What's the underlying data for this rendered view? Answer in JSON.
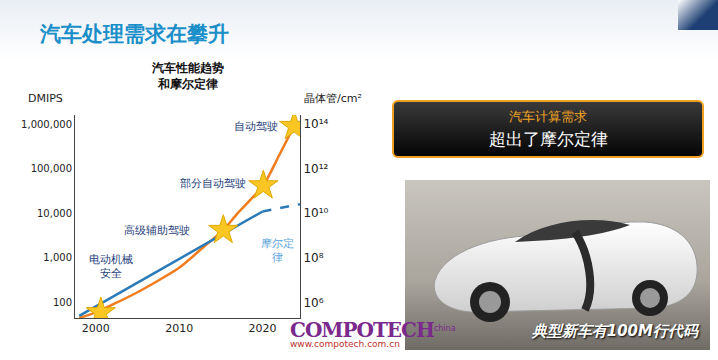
{
  "title": "汽车处理需求在攀升",
  "chart_data": {
    "type": "line",
    "title": "汽车性能趋势\n和摩尔定律",
    "ylabel": "DMIPS",
    "y2label": "晶体管/cm²",
    "log": "y",
    "grid": false,
    "xlim": [
      1997.5,
      2024.5
    ],
    "xticks": [
      2000,
      2010,
      2020
    ],
    "ylim": [
      45,
      1600000
    ],
    "yticks": [
      100,
      {
        "value": 1000,
        "label": "1,000"
      },
      {
        "value": 10000,
        "label": "10,000"
      },
      {
        "value": 100000,
        "label": "100,000"
      },
      {
        "value": 1000000,
        "label": "1,000,000"
      }
    ],
    "y2lim": [
      200000,
      250000000000000
    ],
    "y2ticks": [
      {
        "value": 1000000,
        "label": "10⁶"
      },
      {
        "value": 100000000,
        "label": "10⁸"
      },
      {
        "value": 10000000000,
        "label": "10¹⁰"
      },
      {
        "value": 1000000000000,
        "label": "10¹²"
      },
      {
        "value": 100000000000000,
        "label": "10¹⁴"
      }
    ],
    "series": [
      {
        "type": "line",
        "color": "#f07c1e",
        "line_style": "solid",
        "x": [
          1998,
          2000,
          2005,
          2010,
          2013,
          2015.3,
          2017,
          2020.1,
          2022,
          2023.8
        ],
        "values": [
          45,
          60,
          170,
          600,
          1800,
          4200,
          10000,
          42000,
          200000,
          900000
        ]
      },
      {
        "type": "line",
        "color": "#2a7ab8",
        "line_style": "solid",
        "x": [
          1998,
          2020
        ],
        "values": [
          50,
          11000
        ]
      },
      {
        "type": "line",
        "color": "#2a7ab8",
        "line_style": "dashed",
        "x": [
          2020,
          2024.5
        ],
        "values": [
          11000,
          16000
        ]
      },
      {
        "type": "scatter",
        "marker": "star",
        "color": "#f9c623",
        "x": [
          2000.6,
          2015.3,
          2020.1,
          2023.8
        ],
        "values": [
          60,
          4200,
          42000,
          900000
        ]
      }
    ],
    "annotations": [
      {
        "text": "电动机械\n安全",
        "x": 2001.8,
        "y": 650,
        "color": "#1f3f7a"
      },
      {
        "text": "高级辅助驾驶",
        "x": 2007.3,
        "y": 4200,
        "color": "#1f3f7a"
      },
      {
        "text": "部分自动驾驶",
        "x": 2014,
        "y": 46000,
        "color": "#1f3f7a"
      },
      {
        "text": "自动驾驶",
        "x": 2019.2,
        "y": 900000,
        "color": "#1f3f7a"
      },
      {
        "text": "摩尔定\n律",
        "x": 2021.8,
        "y": 1500,
        "color": "#5aa5dc"
      }
    ]
  },
  "callout": {
    "heading": "汽车计算需求",
    "text": "超出了摩尔定律"
  },
  "caption": "典型新车有100M行代码",
  "watermark": {
    "brand": "COMPOTECH",
    "region": "china",
    "url": "www.compotech.com.cn"
  }
}
